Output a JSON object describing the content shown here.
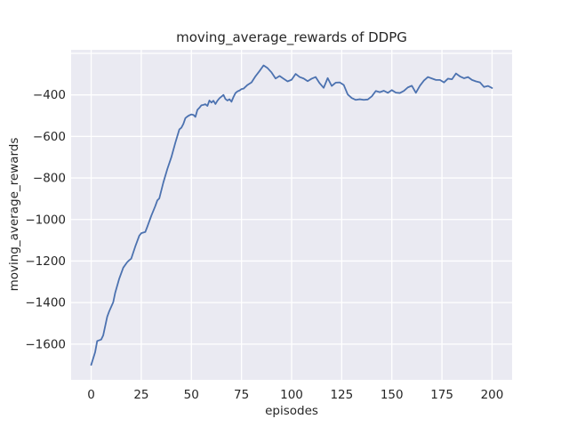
{
  "chart_data": {
    "type": "line",
    "title": "moving_average_rewards of DDPG",
    "xlabel": "episodes",
    "ylabel": "moving_average_rewards",
    "x_ticks": [
      0,
      25,
      50,
      75,
      100,
      125,
      150,
      175,
      200
    ],
    "y_ticks": [
      -400,
      -600,
      -800,
      -1000,
      -1200,
      -1400,
      -1600
    ],
    "extra_gridlines_y": [
      -200
    ],
    "xlim": [
      -10,
      210
    ],
    "ylim": [
      -1772,
      -183
    ],
    "grid": true,
    "legend": null,
    "style": {
      "figure_bg": "#ffffff",
      "axes_bg": "#eaeaf2",
      "grid_color": "#ffffff",
      "text_color": "#262626",
      "line_color": "#4c72b0"
    },
    "series": [
      {
        "name": "moving_average_rewards",
        "color": "#4c72b0",
        "x": [
          0,
          2,
          3,
          5,
          6,
          8,
          9,
          11,
          12,
          14,
          16,
          18,
          19,
          20,
          22,
          24,
          25,
          27,
          28,
          30,
          32,
          33,
          34,
          36,
          38,
          40,
          42,
          44,
          45,
          46,
          47,
          48,
          49,
          50,
          51,
          52,
          53,
          54,
          55,
          56,
          57,
          58,
          59,
          60,
          61,
          62,
          63,
          64,
          65,
          66,
          67,
          68,
          69,
          70,
          71,
          72,
          73,
          74,
          75,
          76,
          78,
          80,
          82,
          84,
          86,
          88,
          90,
          92,
          94,
          96,
          98,
          100,
          102,
          104,
          106,
          108,
          110,
          112,
          114,
          116,
          118,
          120,
          122,
          124,
          126,
          128,
          130,
          132,
          134,
          136,
          138,
          140,
          142,
          144,
          146,
          148,
          150,
          152,
          154,
          156,
          158,
          160,
          162,
          164,
          166,
          168,
          170,
          172,
          174,
          176,
          178,
          180,
          182,
          184,
          186,
          188,
          190,
          192,
          194,
          196,
          198,
          200
        ],
        "y": [
          -1700,
          -1638,
          -1585,
          -1578,
          -1558,
          -1468,
          -1442,
          -1398,
          -1352,
          -1285,
          -1232,
          -1205,
          -1196,
          -1188,
          -1130,
          -1078,
          -1066,
          -1060,
          -1035,
          -982,
          -935,
          -908,
          -898,
          -822,
          -757,
          -700,
          -630,
          -566,
          -558,
          -540,
          -512,
          -504,
          -498,
          -494,
          -496,
          -506,
          -472,
          -462,
          -450,
          -448,
          -445,
          -453,
          -427,
          -437,
          -428,
          -444,
          -428,
          -416,
          -408,
          -400,
          -420,
          -427,
          -421,
          -433,
          -410,
          -391,
          -383,
          -379,
          -372,
          -370,
          -352,
          -340,
          -310,
          -285,
          -258,
          -271,
          -292,
          -321,
          -309,
          -322,
          -335,
          -327,
          -299,
          -314,
          -321,
          -334,
          -322,
          -314,
          -344,
          -366,
          -319,
          -357,
          -341,
          -340,
          -352,
          -398,
          -415,
          -424,
          -421,
          -424,
          -422,
          -407,
          -381,
          -387,
          -380,
          -390,
          -377,
          -389,
          -391,
          -381,
          -364,
          -356,
          -390,
          -356,
          -331,
          -314,
          -321,
          -328,
          -328,
          -340,
          -322,
          -325,
          -297,
          -311,
          -320,
          -314,
          -328,
          -335,
          -340,
          -362,
          -357,
          -367
        ]
      }
    ]
  }
}
